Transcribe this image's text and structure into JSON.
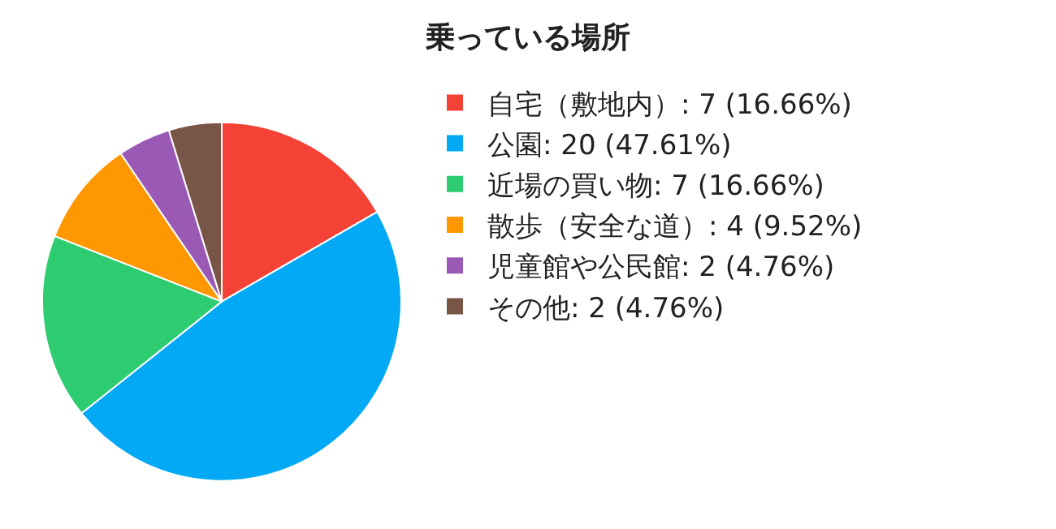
{
  "chart_data": {
    "type": "pie",
    "title": "乗っている場所",
    "categories": [
      "自宅（敷地内）: 7 (16.66%)",
      "公園: 20 (47.61%)",
      "近場の買い物: 7 (16.66%)",
      "散歩（安全な道）: 4 (9.52%)",
      "児童館や公民館: 2 (4.76%)",
      "その他: 2 (4.76%)"
    ],
    "values": [
      7,
      20,
      7,
      4,
      2,
      2
    ],
    "colors": [
      "#f44336",
      "#03a9f4",
      "#2ecc71",
      "#ff9800",
      "#9b59b6",
      "#795548"
    ],
    "legend": "right"
  }
}
